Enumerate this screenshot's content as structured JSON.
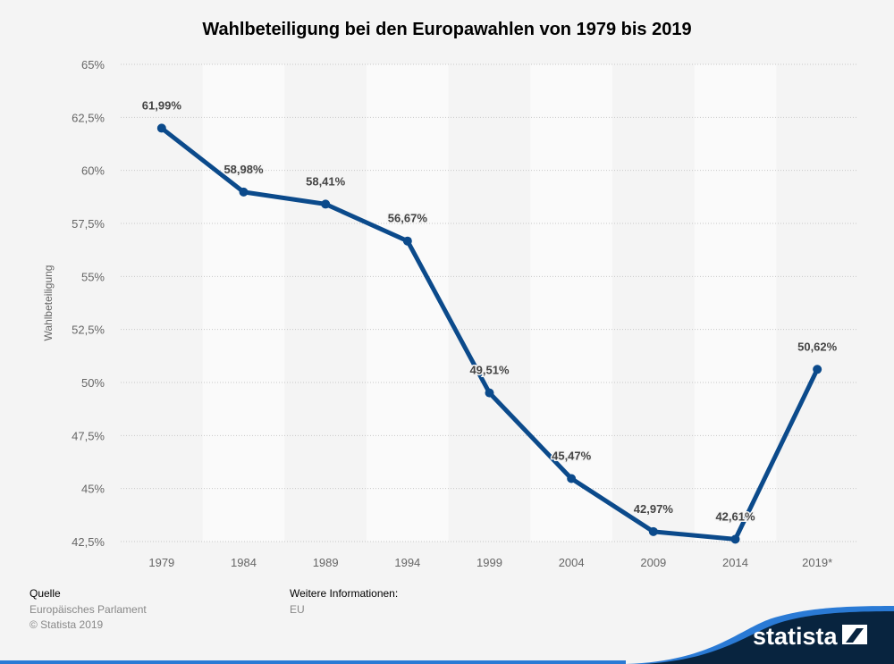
{
  "chart_data": {
    "type": "line",
    "title": "Wahlbeteiligung bei den Europawahlen von 1979 bis 2019",
    "xlabel": "",
    "ylabel": "Wahlbeteiligung",
    "categories": [
      "1979",
      "1984",
      "1989",
      "1994",
      "1999",
      "2004",
      "2009",
      "2014",
      "2019*"
    ],
    "values": [
      61.99,
      58.98,
      58.41,
      56.67,
      49.51,
      45.47,
      42.97,
      42.61,
      50.62
    ],
    "data_labels": [
      "61,99%",
      "58,98%",
      "58,41%",
      "56,67%",
      "49,51%",
      "45,47%",
      "42,97%",
      "42,61%",
      "50,62%"
    ],
    "yticks": [
      "42,5%",
      "45%",
      "47,5%",
      "50%",
      "52,5%",
      "55%",
      "57,5%",
      "60%",
      "62,5%",
      "65%"
    ],
    "ylim": [
      42.5,
      65
    ],
    "grid": true,
    "line_color": "#0b4a8b"
  },
  "footer": {
    "source_heading": "Quelle",
    "source": "Europäisches Parlament",
    "copyright": "© Statista 2019",
    "info_heading": "Weitere Informationen:",
    "info": "EU",
    "logo": "statista"
  }
}
